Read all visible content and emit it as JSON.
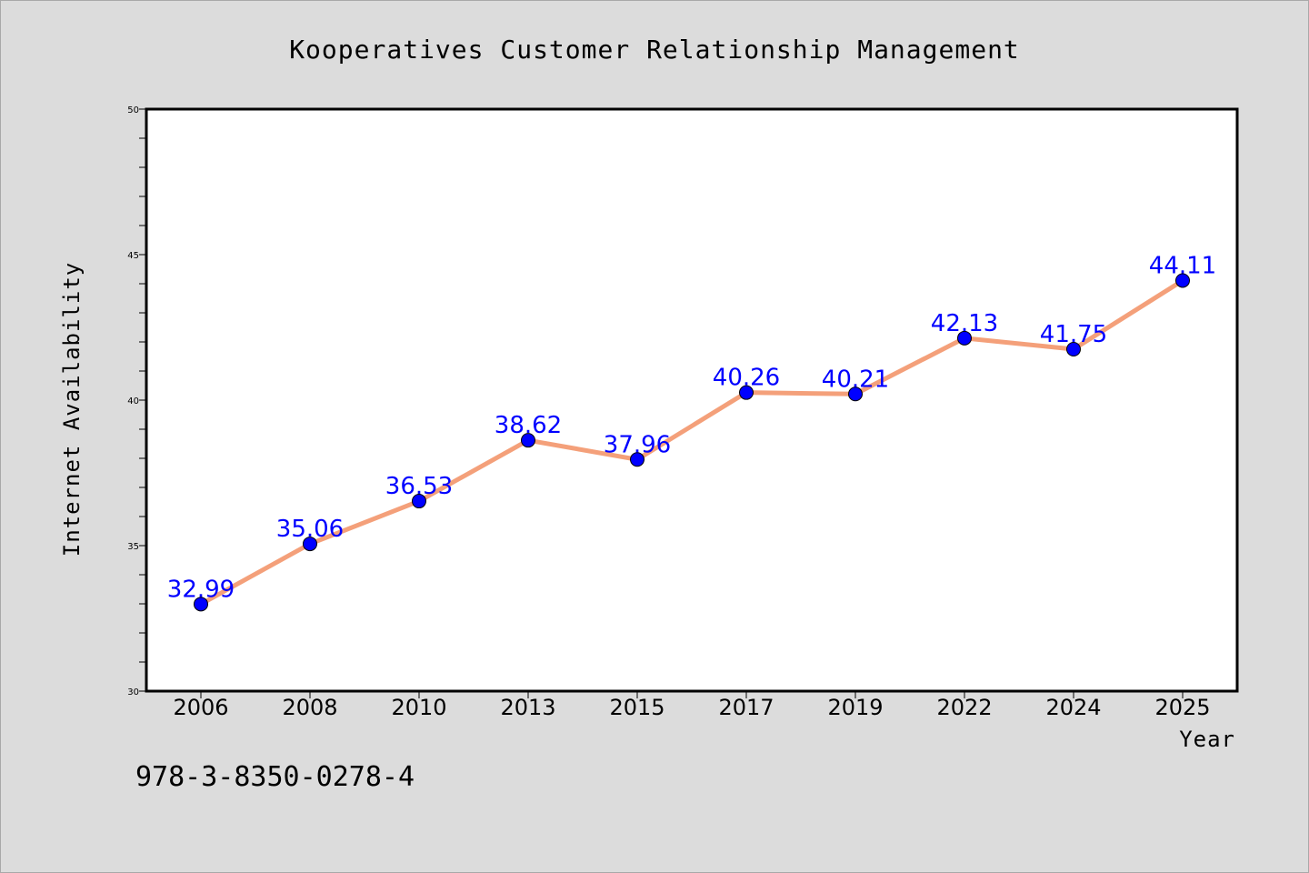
{
  "chart_data": {
    "type": "line",
    "title": "Kooperatives Customer Relationship Management",
    "xlabel": "Year",
    "ylabel": "Internet Availability",
    "categories": [
      "2006",
      "2008",
      "2010",
      "2013",
      "2015",
      "2017",
      "2019",
      "2022",
      "2024",
      "2025"
    ],
    "series": [
      {
        "values": [
          32.99,
          35.06,
          36.53,
          38.62,
          37.96,
          40.26,
          40.21,
          42.13,
          41.75,
          44.11
        ],
        "labels": [
          "32.99",
          "35.06",
          "36.53",
          "38.62",
          "37.96",
          "40.26",
          "40.21",
          "42.13",
          "41.75",
          "44.11"
        ],
        "line_color": "#f4a07a",
        "marker_color": "#0000ff"
      }
    ],
    "ylim": [
      30,
      50
    ],
    "yticks": [
      "30",
      "35",
      "40",
      "45",
      "50"
    ],
    "grid": false,
    "legend": "none"
  },
  "caption": "978-3-8350-0278-4",
  "colors": {
    "background": "#dcdcdc",
    "plot_background": "#ffffff",
    "label_color": "#0000ff"
  }
}
